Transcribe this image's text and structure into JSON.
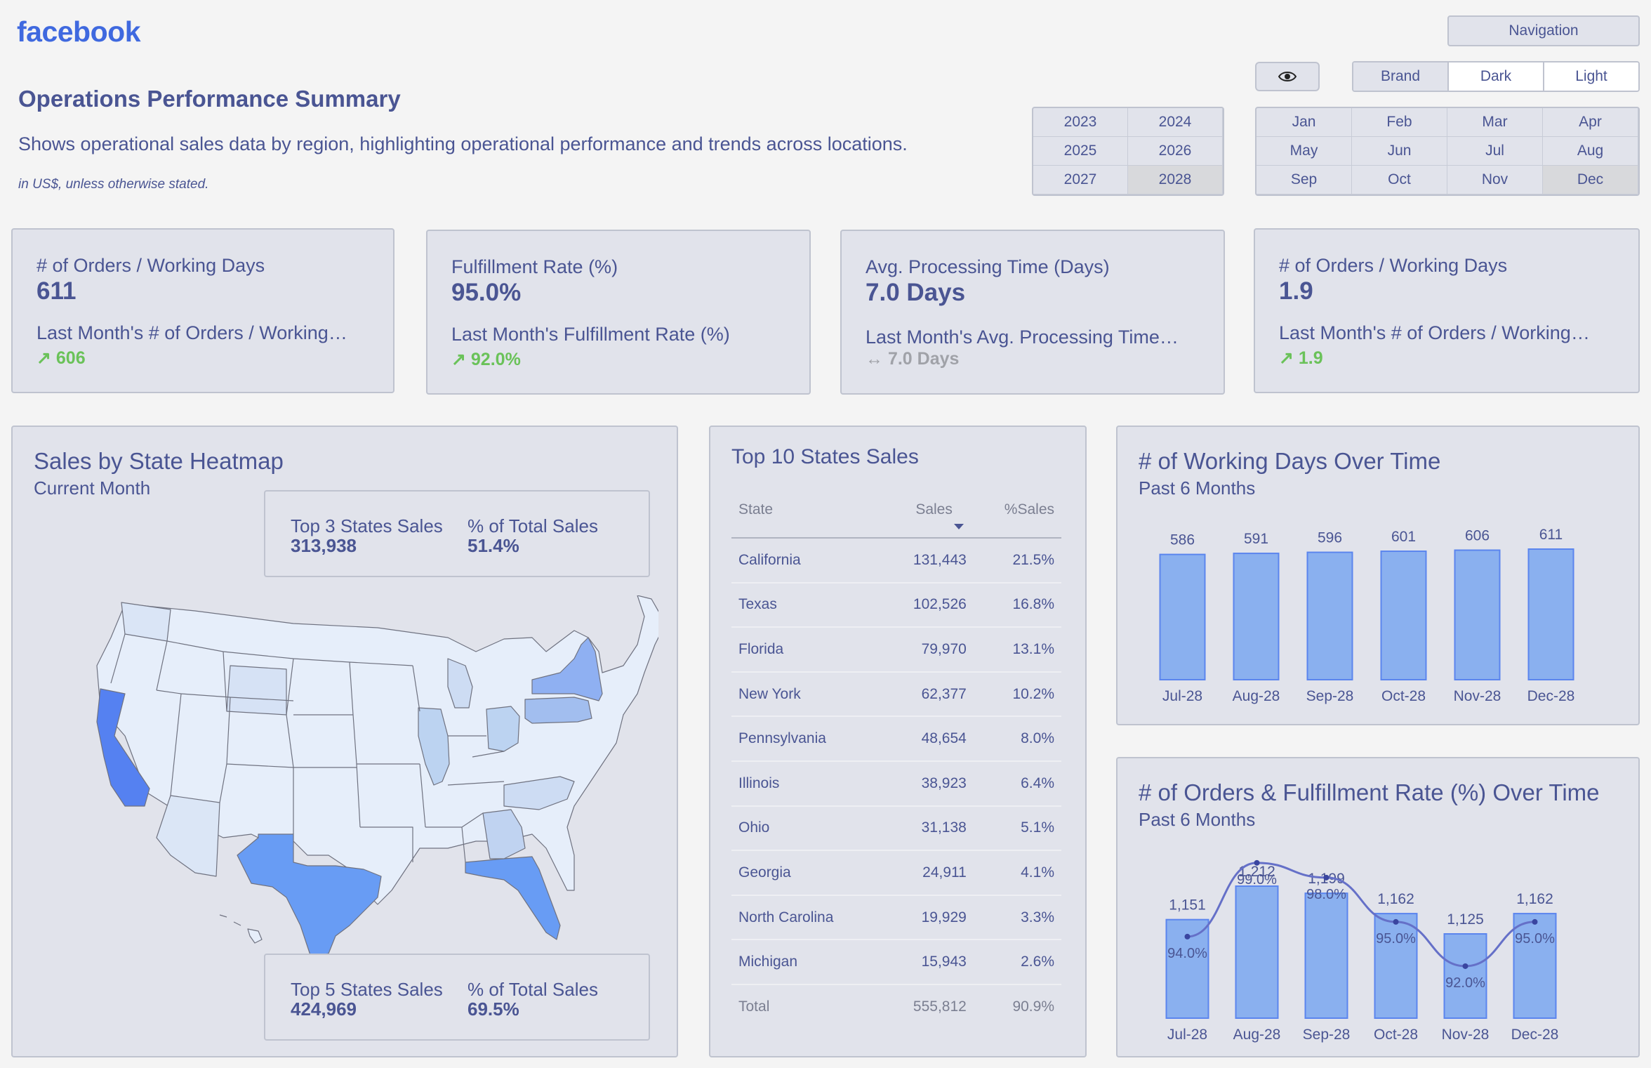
{
  "header": {
    "logo": "facebook",
    "title": "Operations Performance Summary",
    "subtitle": "Shows operational sales data by region, highlighting operational performance and trends across locations.",
    "note": "in US$, unless otherwise stated.",
    "navigation_label": "Navigation",
    "eye_icon": "eye-icon",
    "themes": [
      "Brand",
      "Dark",
      "Light"
    ],
    "years": [
      "2023",
      "2024",
      "2025",
      "2026",
      "2027",
      "2028"
    ],
    "months": [
      "Jan",
      "Feb",
      "Mar",
      "Apr",
      "May",
      "Jun",
      "Jul",
      "Aug",
      "Sep",
      "Oct",
      "Nov",
      "Dec"
    ]
  },
  "kpis": [
    {
      "label": "# of Orders / Working Days",
      "value": "611",
      "sub": "Last Month's # of Orders / Working…",
      "arrow": "↗",
      "change": "606",
      "color": "#6ac259"
    },
    {
      "label": "Fulfillment Rate (%)",
      "value": "95.0%",
      "sub": "Last Month's Fulfillment Rate (%)",
      "arrow": "↗",
      "change": "92.0%",
      "color": "#6ac259"
    },
    {
      "label": "Avg. Processing Time (Days)",
      "value": "7.0 Days",
      "sub": "Last Month's Avg. Processing Time…",
      "arrow": "↔",
      "change": "7.0 Days",
      "color": "#a0a2a8"
    },
    {
      "label": "# of Orders / Working Days",
      "value": "1.9",
      "sub": "Last Month's # of Orders / Working…",
      "arrow": "↗",
      "change": "1.9",
      "color": "#6ac259"
    }
  ],
  "heatmap": {
    "title": "Sales by State Heatmap",
    "subtitle": "Current Month",
    "top3_label": "Top 3 States Sales",
    "top3_value": "313,938",
    "top3_pct_label": "% of Total Sales",
    "top3_pct": "51.4%",
    "top5_label": "Top 5 States Sales",
    "top5_value": "424,969",
    "top5_pct_label": "% of Total Sales",
    "top5_pct": "69.5%"
  },
  "top_states": {
    "title": "Top 10 States Sales",
    "columns": [
      "State",
      "Sales",
      "%Sales"
    ],
    "rows": [
      [
        "California",
        "131,443",
        "21.5%"
      ],
      [
        "Texas",
        "102,526",
        "16.8%"
      ],
      [
        "Florida",
        "79,970",
        "13.1%"
      ],
      [
        "New York",
        "62,377",
        "10.2%"
      ],
      [
        "Pennsylvania",
        "48,654",
        "8.0%"
      ],
      [
        "Illinois",
        "38,923",
        "6.4%"
      ],
      [
        "Ohio",
        "31,138",
        "5.1%"
      ],
      [
        "Georgia",
        "24,911",
        "4.1%"
      ],
      [
        "North Carolina",
        "19,929",
        "3.3%"
      ],
      [
        "Michigan",
        "15,943",
        "2.6%"
      ]
    ],
    "total": [
      "Total",
      "555,812",
      "90.9%"
    ]
  },
  "working_days": {
    "title": "# of Working Days Over Time",
    "subtitle": "Past 6 Months"
  },
  "orders_rate": {
    "title": "# of Orders & Fulfillment Rate (%) Over Time",
    "subtitle": "Past 6 Months"
  },
  "chart_data": [
    {
      "type": "bar",
      "title": "# of Working Days Over Time",
      "subtitle": "Past 6 Months",
      "categories": [
        "Jul-28",
        "Aug-28",
        "Sep-28",
        "Oct-28",
        "Nov-28",
        "Dec-28"
      ],
      "values": [
        586,
        591,
        596,
        601,
        606,
        611
      ],
      "data_labels": [
        "586",
        "591",
        "596",
        "601",
        "606",
        "611"
      ],
      "color": "#8ab0ef"
    },
    {
      "type": "bar",
      "title": "# of Orders & Fulfillment Rate (%) Over Time",
      "subtitle": "Past 6 Months",
      "categories": [
        "Jul-28",
        "Aug-28",
        "Sep-28",
        "Oct-28",
        "Nov-28",
        "Dec-28"
      ],
      "series": [
        {
          "type": "bar",
          "values": [
            1151,
            1212,
            1199,
            1162,
            1125,
            1162
          ],
          "labels": [
            "1,151",
            "1,212",
            "1,199",
            "1,162",
            "1,125",
            "1,162"
          ],
          "color": "#8ab0ef"
        },
        {
          "type": "line",
          "values": [
            94.0,
            99.0,
            98.0,
            95.0,
            92.0,
            95.0
          ],
          "labels": [
            "94.0%",
            "99.0%",
            "98.0%",
            "95.0%",
            "92.0%",
            "95.0%"
          ],
          "color": "#6570c8"
        }
      ]
    }
  ]
}
